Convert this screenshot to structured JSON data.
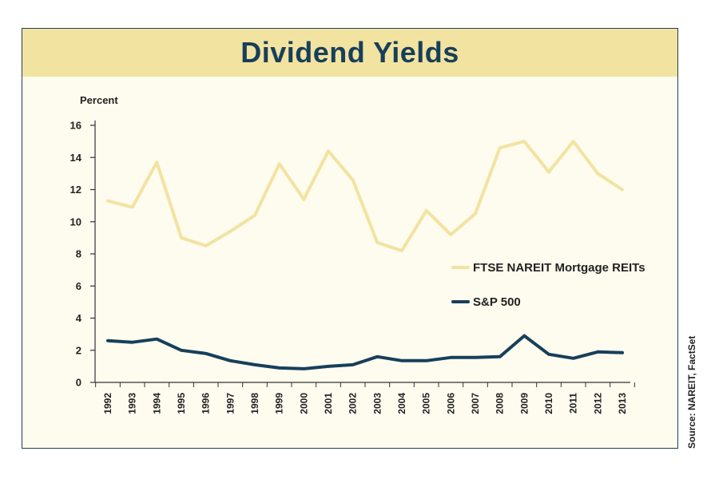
{
  "chart_data": {
    "type": "line",
    "title": "Dividend Yields",
    "ylabel": "Percent",
    "xlabel": "",
    "x": [
      "1992",
      "1993",
      "1994",
      "1995",
      "1996",
      "1997",
      "1998",
      "1999",
      "2000",
      "2001",
      "2002",
      "2003",
      "2004",
      "2005",
      "2006",
      "2007",
      "2008",
      "2009",
      "2010",
      "2011",
      "2012",
      "2013"
    ],
    "ylim": [
      0,
      16
    ],
    "yticks": [
      "0",
      "2",
      "4",
      "6",
      "8",
      "10",
      "12",
      "14",
      "16"
    ],
    "series": [
      {
        "name": "FTSE NAREIT Mortgage REITs",
        "color": "#f2e3a0",
        "values": [
          11.3,
          10.9,
          13.7,
          9.0,
          8.5,
          9.4,
          10.4,
          13.6,
          11.4,
          14.4,
          12.6,
          8.7,
          8.2,
          10.7,
          9.2,
          10.5,
          14.6,
          15.0,
          13.1,
          15.0,
          13.0,
          12.0
        ]
      },
      {
        "name": "S&P 500",
        "color": "#173f5a",
        "values": [
          2.6,
          2.5,
          2.7,
          2.0,
          1.8,
          1.35,
          1.1,
          0.9,
          0.85,
          1.0,
          1.1,
          1.6,
          1.35,
          1.35,
          1.55,
          1.55,
          1.6,
          2.9,
          1.75,
          1.5,
          1.9,
          1.85
        ]
      }
    ],
    "legend_position": "right-middle",
    "grid": false,
    "source": "Source: NAREIT, FactSet"
  },
  "colors": {
    "header_bg": "#f2e3a0",
    "plot_bg": "#fefbef",
    "title": "#173f5a",
    "frame": "#1f3f55"
  }
}
